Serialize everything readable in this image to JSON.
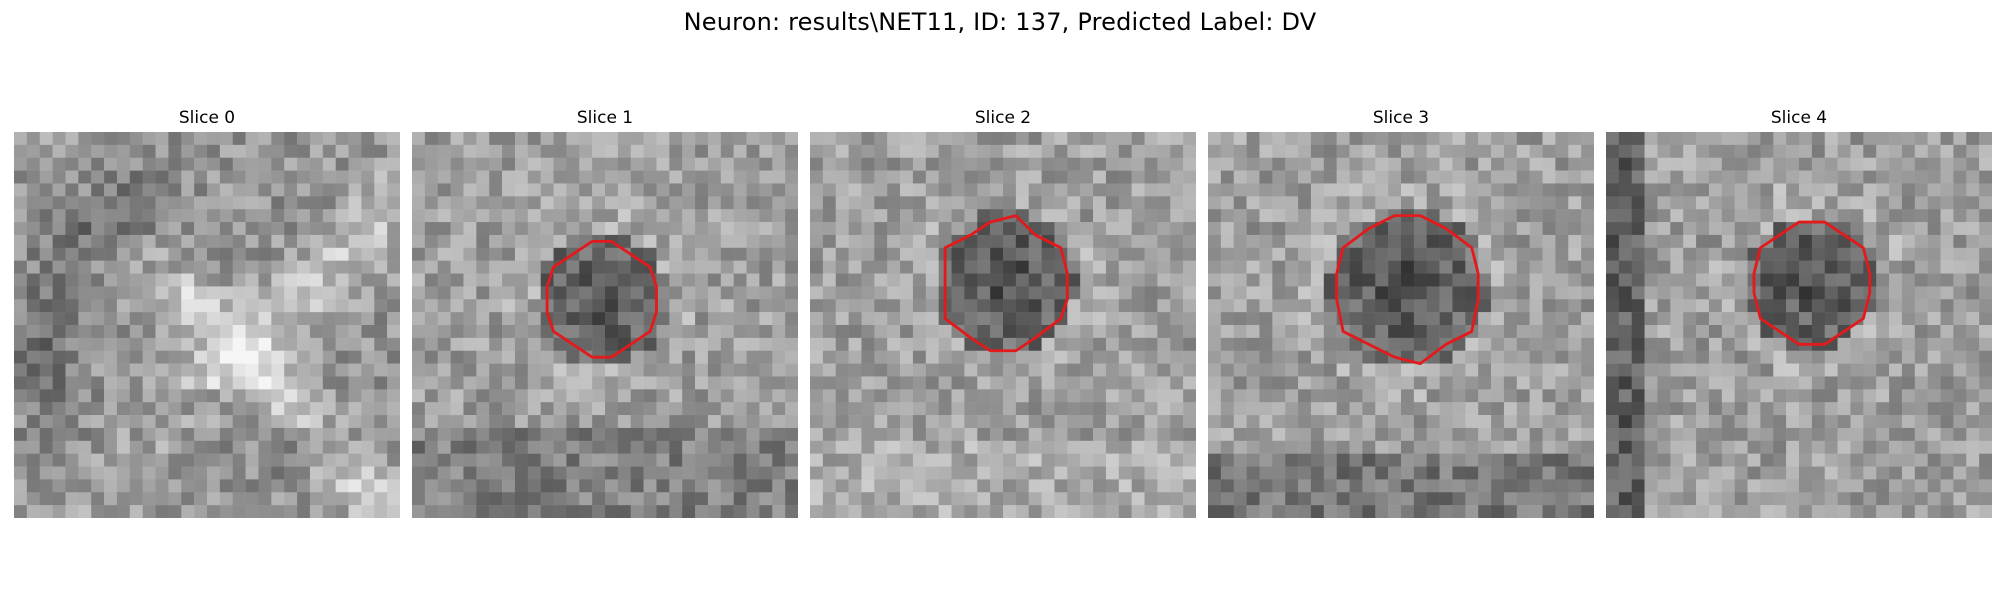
{
  "figure": {
    "title": "Neuron: results\\NET11, ID: 137, Predicted Label: DV"
  },
  "panels": [
    {
      "title": "Slice 0",
      "has_contour": false
    },
    {
      "title": "Slice 1",
      "has_contour": true
    },
    {
      "title": "Slice 2",
      "has_contour": true
    },
    {
      "title": "Slice 3",
      "has_contour": true
    },
    {
      "title": "Slice 4",
      "has_contour": true
    }
  ],
  "colors": {
    "contour": "#e31a1c",
    "colormap": "grayscale"
  }
}
